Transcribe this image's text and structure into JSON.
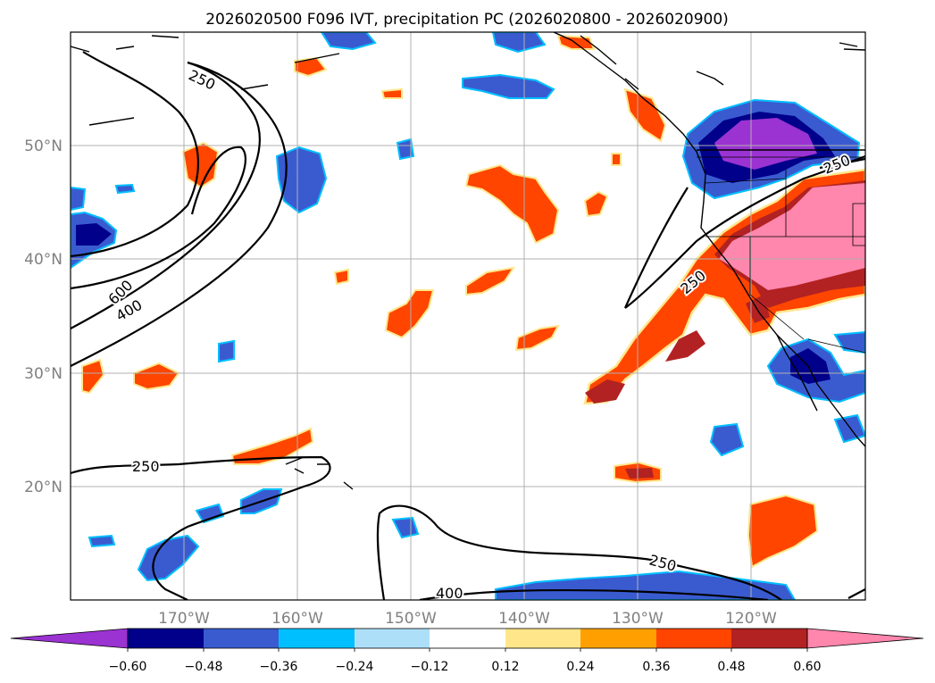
{
  "title": "2026020500 F096 IVT, precipitation PC (2026020800 - 2026020900)",
  "lat_labels": [
    "50°N",
    "40°N",
    "30°N",
    "20°N"
  ],
  "lon_labels": [
    "170°W",
    "160°W",
    "150°W",
    "140°W",
    "130°W",
    "120°W"
  ],
  "contour_labels": [
    "250",
    "600",
    "400",
    "250",
    "250",
    "250",
    "400",
    "250"
  ],
  "colorbar": {
    "tick_labels": [
      "−0.60",
      "−0.48",
      "−0.36",
      "−0.24",
      "−0.12",
      "0.12",
      "0.24",
      "0.36",
      "0.48",
      "0.60"
    ],
    "colors": [
      "#9b32d2",
      "#00008b",
      "#3a5bd0",
      "#00bfff",
      "#ade0f8",
      "#ffffff",
      "#ffe68a",
      "#ffa000",
      "#ff4500",
      "#b22222",
      "#ff86ad"
    ]
  }
}
